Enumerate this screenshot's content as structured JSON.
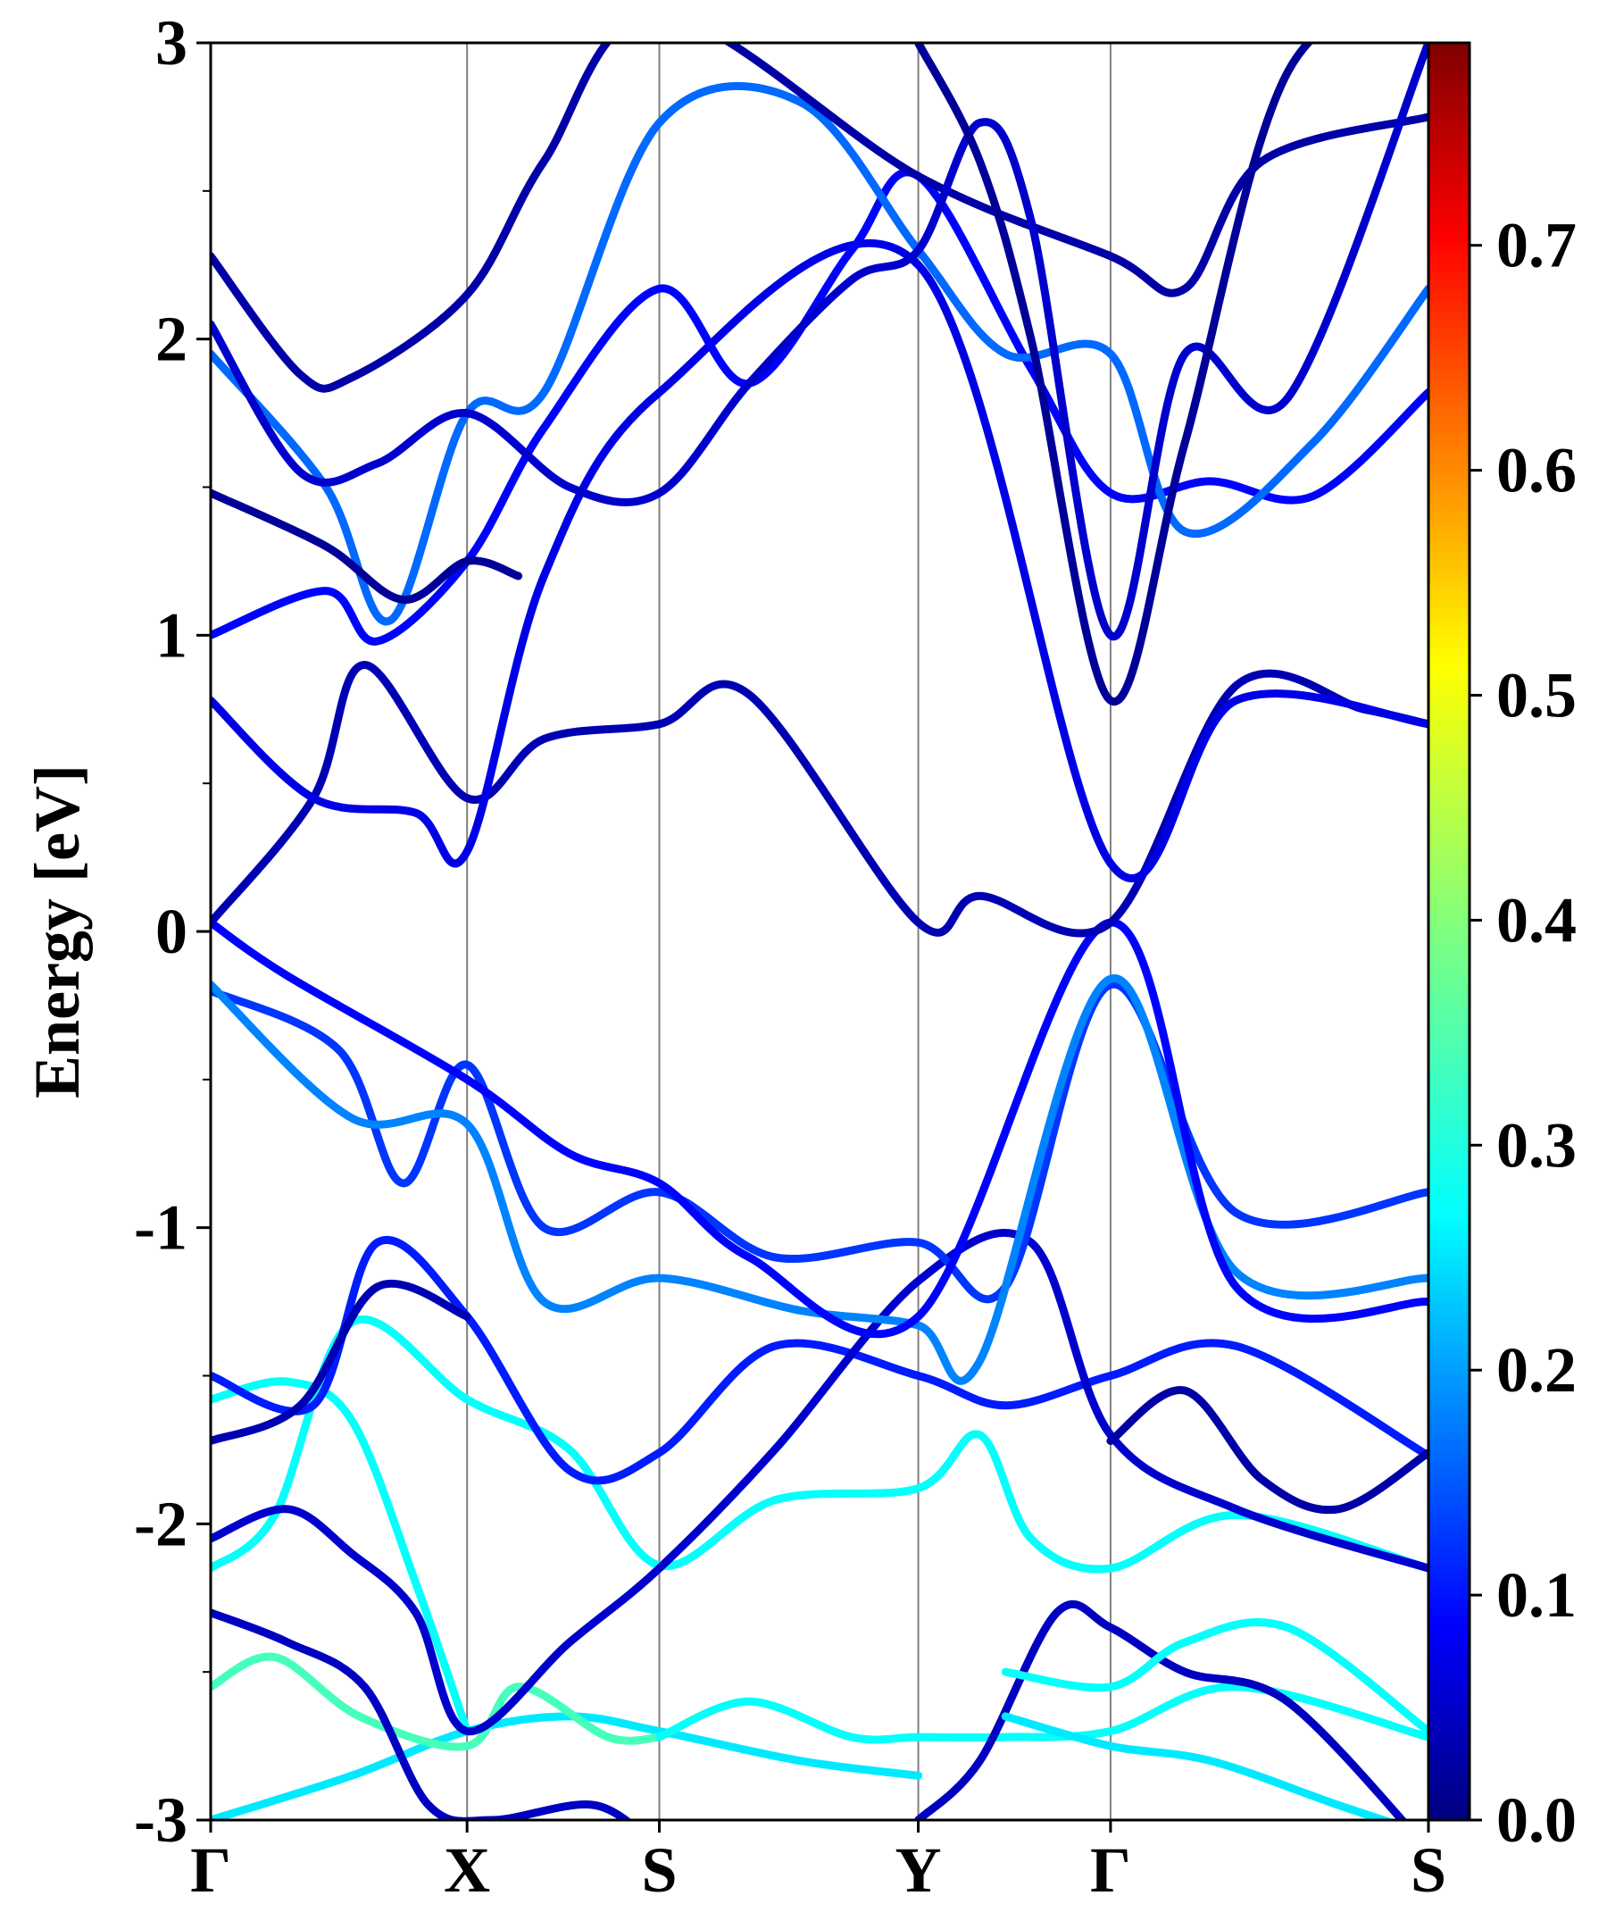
{
  "chart_data": {
    "type": "line",
    "title": "",
    "xlabel": "",
    "ylabel": "Energy [eV]",
    "ylim": [
      -3,
      3
    ],
    "k_points": [
      {
        "label": "Γ",
        "k": 0.0
      },
      {
        "label": "X",
        "k": 1.0
      },
      {
        "label": "S",
        "k": 1.75
      },
      {
        "label": "Y",
        "k": 2.76
      },
      {
        "label": "Γ",
        "k": 3.51
      },
      {
        "label": "S",
        "k": 4.75
      }
    ],
    "y_ticks": [
      {
        "value": 3,
        "label": "3"
      },
      {
        "value": 2,
        "label": "2"
      },
      {
        "value": 1,
        "label": "1"
      },
      {
        "value": 0,
        "label": "0"
      },
      {
        "value": -1,
        "label": "-1"
      },
      {
        "value": -2,
        "label": "-2"
      },
      {
        "value": -3,
        "label": "-3"
      }
    ],
    "colorbar": {
      "colormap": "jet",
      "range": [
        0.0,
        0.79
      ],
      "ticks": [
        {
          "value": 0.0,
          "label": "0.0"
        },
        {
          "value": 0.1,
          "label": "0.1"
        },
        {
          "value": 0.2,
          "label": "0.2"
        },
        {
          "value": 0.3,
          "label": "0.3"
        },
        {
          "value": 0.4,
          "label": "0.4"
        },
        {
          "value": 0.5,
          "label": "0.5"
        },
        {
          "value": 0.6,
          "label": "0.6"
        },
        {
          "value": 0.7,
          "label": "0.7"
        }
      ]
    },
    "series": [
      {
        "name": "band-1",
        "x": [
          0,
          0.55,
          1.0,
          1.4,
          1.75,
          2.3,
          2.76
        ],
        "y": [
          -3.0,
          -2.85,
          -2.7,
          -2.65,
          -2.7,
          -2.8,
          -2.85
        ],
        "weight": 0.28
      },
      {
        "name": "band-2",
        "x": [
          0,
          0.25,
          0.58,
          1.0,
          1.2,
          1.55,
          1.75
        ],
        "y": [
          -2.55,
          -2.45,
          -2.65,
          -2.75,
          -2.55,
          -2.72,
          -2.72
        ],
        "weight": 0.35
      },
      {
        "name": "band-3",
        "x": [
          1.75,
          2.1,
          2.5,
          2.76,
          3.1,
          3.51,
          4.0,
          4.75
        ],
        "y": [
          -2.72,
          -2.6,
          -2.72,
          -2.72,
          -2.72,
          -2.7,
          -2.55,
          -2.72
        ],
        "weight": 0.3
      },
      {
        "name": "band-4",
        "x": [
          0,
          0.25,
          0.55,
          1.0,
          1.4,
          1.75,
          2.2,
          2.76,
          3.0,
          3.2,
          3.51,
          4.0,
          4.75
        ],
        "y": [
          -2.15,
          -1.97,
          -1.32,
          -1.58,
          -1.75,
          -2.14,
          -1.92,
          -1.88,
          -1.7,
          -2.05,
          -2.15,
          -1.97,
          -2.15
        ],
        "weight": 0.3
      },
      {
        "name": "band-5",
        "x": [
          0,
          0.3,
          0.55,
          0.8,
          1.0
        ],
        "y": [
          -1.58,
          -1.52,
          -1.65,
          -2.2,
          -2.7
        ],
        "weight": 0.3
      },
      {
        "name": "band-6",
        "x": [
          0,
          0.4,
          0.65,
          1.0,
          1.4,
          1.75,
          2.2,
          2.76,
          3.1,
          3.51,
          4.0,
          4.75
        ],
        "y": [
          -1.5,
          -1.6,
          -1.05,
          -1.3,
          -1.82,
          -1.76,
          -1.4,
          -1.5,
          -1.6,
          -1.5,
          -1.4,
          -1.77
        ],
        "weight": 0.12
      },
      {
        "name": "band-7",
        "x": [
          0,
          0.3,
          0.55,
          0.8,
          1.0,
          1.4,
          1.75,
          2.2,
          2.76,
          3.2,
          3.51,
          4.0,
          4.75
        ],
        "y": [
          -2.05,
          -1.95,
          -2.1,
          -2.3,
          -2.7,
          -2.4,
          -2.15,
          -1.75,
          -1.18,
          -1.05,
          -1.7,
          -1.95,
          -2.15
        ],
        "weight": 0.06
      },
      {
        "name": "band-8",
        "x": [
          0,
          0.5,
          0.75,
          1.0,
          1.3,
          1.75,
          2.2,
          2.76,
          3.1,
          3.51,
          4.0,
          4.75
        ],
        "y": [
          -0.2,
          -0.4,
          -0.85,
          -0.45,
          -1.0,
          -0.88,
          -1.1,
          -1.05,
          -1.2,
          -0.18,
          -0.95,
          -0.88
        ],
        "weight": 0.14
      },
      {
        "name": "band-9",
        "x": [
          0,
          0.55,
          1.0,
          1.3,
          1.75,
          2.3,
          2.76,
          3.0,
          3.51,
          4.0,
          4.75
        ],
        "y": [
          -0.18,
          -0.63,
          -0.65,
          -1.25,
          -1.17,
          -1.28,
          -1.33,
          -1.45,
          -0.16,
          -1.15,
          -1.17
        ],
        "weight": 0.2
      },
      {
        "name": "band-10",
        "x": [
          0,
          0.3,
          1.0,
          1.4,
          1.75,
          2.1,
          2.76,
          3.51,
          4.0,
          4.75
        ],
        "y": [
          0.03,
          -0.15,
          -0.5,
          -0.75,
          -0.85,
          -1.1,
          -1.3,
          0.03,
          -1.2,
          -1.25
        ],
        "weight": 0.1
      },
      {
        "name": "band-11",
        "x": [
          0,
          0.4,
          0.6,
          1.0,
          1.3,
          1.75,
          2.1,
          2.76,
          3.0,
          3.51,
          4.0,
          4.5,
          4.75
        ],
        "y": [
          0.03,
          0.45,
          0.9,
          0.45,
          0.65,
          0.7,
          0.8,
          0.03,
          0.12,
          0.03,
          0.83,
          0.75,
          0.7
        ],
        "weight": 0.04
      },
      {
        "name": "band-12",
        "x": [
          0,
          0.4,
          0.8,
          1.0,
          1.3,
          1.75,
          2.76,
          3.51,
          4.0,
          4.75
        ],
        "y": [
          0.78,
          0.45,
          0.4,
          0.27,
          1.2,
          1.82,
          2.25,
          0.23,
          0.78,
          0.7
        ],
        "weight": 0.08
      },
      {
        "name": "band-13",
        "x": [
          0,
          0.45,
          0.65,
          1.0,
          1.3,
          1.75,
          2.1,
          2.5,
          2.76,
          3.2,
          3.51,
          3.9,
          4.3,
          4.75
        ],
        "y": [
          1.0,
          1.15,
          0.98,
          1.25,
          1.7,
          2.17,
          1.85,
          2.3,
          2.55,
          1.9,
          1.48,
          1.52,
          1.47,
          1.82
        ],
        "weight": 0.1
      },
      {
        "name": "band-14",
        "x": [
          0,
          0.45,
          0.7,
          1.0,
          1.3,
          1.75,
          2.3,
          2.76,
          3.1,
          3.51,
          3.8,
          4.3,
          4.75
        ],
        "y": [
          1.95,
          1.5,
          1.05,
          1.75,
          1.82,
          2.73,
          2.8,
          2.3,
          1.95,
          1.95,
          1.35,
          1.65,
          2.17
        ],
        "weight": 0.18
      },
      {
        "name": "band-15",
        "x": [
          0,
          0.35,
          0.55,
          1.0,
          1.3,
          1.75,
          2.76,
          3.51,
          3.8,
          4.1,
          4.75
        ],
        "y": [
          2.28,
          1.88,
          1.87,
          2.15,
          2.6,
          3.1,
          2.55,
          2.28,
          2.17,
          2.6,
          2.75
        ],
        "weight": 0.03
      },
      {
        "name": "band-16",
        "x": [
          0,
          0.35,
          0.65,
          1.0,
          1.4,
          1.75,
          2.1,
          2.5,
          2.76,
          3.0,
          3.2,
          3.51,
          3.8,
          4.2,
          4.75
        ],
        "y": [
          2.05,
          1.55,
          1.58,
          1.75,
          1.5,
          1.48,
          1.85,
          2.2,
          2.3,
          2.73,
          2.4,
          1.0,
          1.95,
          1.8,
          3.0
        ],
        "weight": 0.06
      },
      {
        "name": "band-17",
        "x": [
          0,
          0.45,
          0.75,
          1.0,
          1.2
        ],
        "y": [
          1.48,
          1.3,
          1.12,
          1.25,
          1.2
        ],
        "weight": 0.02
      },
      {
        "name": "band-18",
        "x": [
          2.76,
          3.0,
          3.2,
          3.51,
          3.8,
          4.2,
          4.75
        ],
        "y": [
          3.0,
          2.6,
          2.0,
          0.78,
          1.65,
          2.9,
          3.2
        ],
        "weight": 0.02
      },
      {
        "name": "band-19",
        "x": [
          0,
          0.35,
          0.65,
          1.0
        ],
        "y": [
          -1.72,
          -1.6,
          -1.2,
          -1.3
        ],
        "weight": 0.04
      },
      {
        "name": "band-20",
        "x": [
          0,
          0.3,
          0.6,
          0.85,
          1.1,
          1.5,
          1.75
        ],
        "y": [
          -2.3,
          -2.4,
          -2.55,
          -2.95,
          -3.0,
          -2.95,
          -3.1
        ],
        "weight": 0.05
      },
      {
        "name": "band-21",
        "x": [
          2.76,
          3.0,
          3.3,
          3.51,
          3.8,
          4.2,
          4.75
        ],
        "y": [
          -3.0,
          -2.8,
          -2.3,
          -2.35,
          -2.5,
          -2.6,
          -3.1
        ],
        "weight": 0.05
      },
      {
        "name": "band-22",
        "x": [
          3.51,
          3.8,
          4.1,
          4.4,
          4.75
        ],
        "y": [
          -1.72,
          -1.55,
          -1.85,
          -1.95,
          -1.76
        ],
        "weight": 0.03
      },
      {
        "name": "band-23",
        "x": [
          3.1,
          3.51,
          3.8,
          4.2,
          4.75
        ],
        "y": [
          -2.5,
          -2.55,
          -2.4,
          -2.35,
          -2.7
        ],
        "weight": 0.3
      },
      {
        "name": "band-24",
        "x": [
          3.1,
          3.51,
          3.9,
          4.4,
          4.75
        ],
        "y": [
          -2.65,
          -2.75,
          -2.8,
          -2.95,
          -3.05
        ],
        "weight": 0.28
      }
    ]
  }
}
